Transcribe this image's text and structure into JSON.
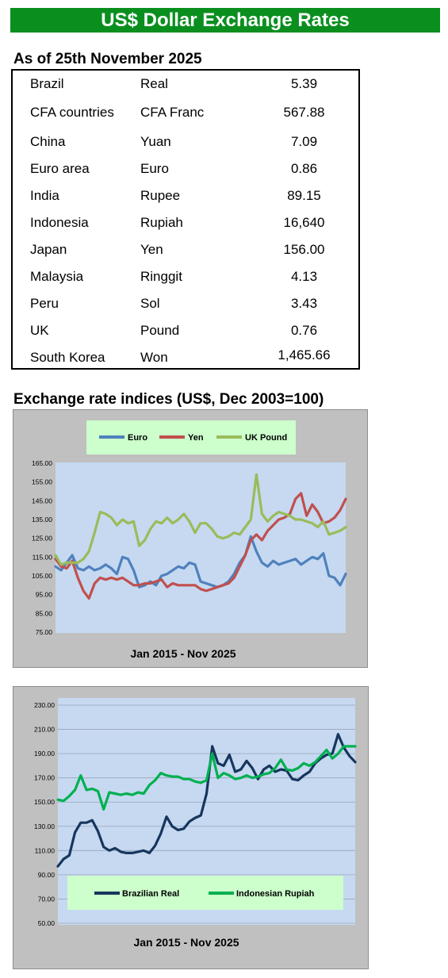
{
  "header": {
    "title": "US$ Dollar Exchange Rates"
  },
  "rates": {
    "as_of": "As of 25th November 2025",
    "rows": [
      {
        "country": "Brazil",
        "currency": "Real",
        "value": "5.39"
      },
      {
        "country": "CFA countries",
        "currency": "CFA Franc",
        "value": "567.88"
      },
      {
        "country": "China",
        "currency": "Yuan",
        "value": "7.09"
      },
      {
        "country": "Euro area",
        "currency": "Euro",
        "value": "0.86"
      },
      {
        "country": "India",
        "currency": "Rupee",
        "value": "89.15"
      },
      {
        "country": "Indonesia",
        "currency": "Rupiah",
        "value": "16,640"
      },
      {
        "country": "Japan",
        "currency": "Yen",
        "value": "156.00"
      },
      {
        "country": "Malaysia",
        "currency": "Ringgit",
        "value": "4.13"
      },
      {
        "country": "Peru",
        "currency": "Sol",
        "value": "3.43"
      },
      {
        "country": "UK",
        "currency": "Pound",
        "value": "0.76"
      },
      {
        "country": "South Korea",
        "currency": "Won",
        "value": "1,465.66"
      }
    ]
  },
  "indices": {
    "section_title": "Exchange rate indices (US$, Dec 2003=100)"
  },
  "chart_data": [
    {
      "type": "line",
      "title": "",
      "xlabel": "Jan 2015 - Nov 2025",
      "ylabel": "",
      "ylim": [
        75,
        165
      ],
      "yticks": [
        "165.00",
        "155.00",
        "145.00",
        "135.00",
        "125.00",
        "115.00",
        "105.00",
        "95.00",
        "85.00",
        "75.00"
      ],
      "grid": false,
      "legend": "top",
      "background": "#c6d9f1",
      "series": [
        {
          "name": "Euro",
          "color": "#4f81bd",
          "values": [
            110,
            108,
            112,
            116,
            109,
            108,
            110,
            108,
            109,
            111,
            109,
            106,
            115,
            114,
            108,
            99,
            100,
            102,
            100,
            105,
            106,
            108,
            110,
            109,
            112,
            111,
            102,
            101,
            100,
            99,
            100,
            102,
            106,
            112,
            116,
            126,
            118,
            112,
            110,
            113,
            111,
            112,
            113,
            114,
            111,
            113,
            115,
            114,
            117,
            105,
            104,
            100,
            106
          ]
        },
        {
          "name": "Yen",
          "color": "#c0504d",
          "values": [
            114,
            110,
            109,
            113,
            104,
            97,
            93,
            101,
            104,
            103,
            104,
            103,
            104,
            102,
            100,
            100,
            101,
            101,
            102,
            103,
            99,
            101,
            100,
            100,
            100,
            100,
            98,
            97,
            98,
            99,
            100,
            101,
            104,
            110,
            116,
            124,
            127,
            124,
            129,
            132,
            135,
            136,
            138,
            146,
            149,
            137,
            143,
            139,
            133,
            134,
            136,
            140,
            146
          ]
        },
        {
          "name": "UK Pound",
          "color": "#9bbb59",
          "values": [
            116,
            111,
            112,
            112,
            112,
            114,
            118,
            128,
            139,
            138,
            136,
            132,
            135,
            133,
            134,
            121,
            124,
            130,
            134,
            133,
            136,
            133,
            135,
            138,
            134,
            128,
            133,
            133,
            130,
            126,
            125,
            126,
            128,
            127,
            131,
            135,
            159,
            138,
            134,
            137,
            139,
            138,
            137,
            135,
            135,
            134,
            133,
            131,
            134,
            127,
            128,
            129,
            131
          ]
        }
      ]
    },
    {
      "type": "line",
      "title": "",
      "xlabel": "Jan 2015 - Nov 2025",
      "ylabel": "",
      "ylim": [
        50,
        230
      ],
      "yticks": [
        "230.00",
        "210.00",
        "190.00",
        "170.00",
        "150.00",
        "130.00",
        "110.00",
        "90.00",
        "70.00",
        "50.00"
      ],
      "grid": true,
      "legend": "bottom",
      "background": "#c6d9f1",
      "series": [
        {
          "name": "Brazilian Real",
          "color": "#17365d",
          "values": [
            97,
            103,
            106,
            125,
            133,
            133,
            135,
            126,
            113,
            110,
            112,
            109,
            108,
            108,
            109,
            110,
            108,
            114,
            124,
            138,
            130,
            127,
            128,
            134,
            137,
            139,
            157,
            196,
            182,
            180,
            189,
            175,
            177,
            184,
            178,
            169,
            177,
            180,
            175,
            177,
            176,
            169,
            168,
            172,
            175,
            182,
            186,
            189,
            190,
            206,
            195,
            188,
            183
          ]
        },
        {
          "name": "Indonesian Rupiah",
          "color": "#00b050",
          "values": [
            152,
            151,
            155,
            160,
            172,
            160,
            161,
            159,
            144,
            158,
            157,
            156,
            157,
            156,
            158,
            157,
            164,
            168,
            174,
            172,
            171,
            171,
            169,
            169,
            167,
            166,
            168,
            190,
            170,
            174,
            172,
            169,
            170,
            172,
            170,
            171,
            173,
            174,
            178,
            185,
            177,
            176,
            178,
            182,
            180,
            183,
            188,
            193,
            186,
            190,
            196,
            196,
            196
          ]
        }
      ]
    }
  ]
}
